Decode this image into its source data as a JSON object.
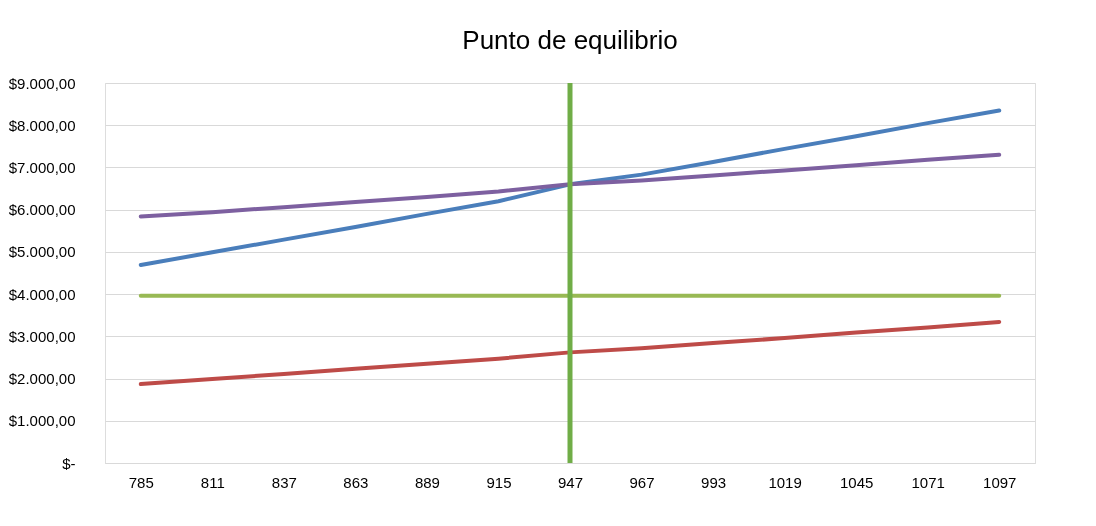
{
  "chart_data": {
    "type": "line",
    "title": "Punto de equilibrio",
    "categories": [
      "785",
      "811",
      "837",
      "863",
      "889",
      "915",
      "947",
      "967",
      "993",
      "1019",
      "1045",
      "1071",
      "1097"
    ],
    "series": [
      {
        "color": "#4a7ebb",
        "values": [
          4690,
          4990,
          5290,
          5590,
          5900,
          6200,
          6600,
          6830,
          7130,
          7440,
          7740,
          8050,
          8350
        ]
      },
      {
        "color": "#be4b48",
        "values": [
          1870,
          1990,
          2110,
          2230,
          2350,
          2470,
          2620,
          2720,
          2840,
          2960,
          3090,
          3210,
          3340
        ]
      },
      {
        "color": "#98b954",
        "values": [
          3960,
          3960,
          3960,
          3960,
          3960,
          3960,
          3960,
          3960,
          3960,
          3960,
          3960,
          3960,
          3960
        ]
      },
      {
        "color": "#7d60a0",
        "values": [
          5840,
          5940,
          6060,
          6180,
          6300,
          6430,
          6600,
          6690,
          6810,
          6930,
          7050,
          7180,
          7300
        ]
      }
    ],
    "ylim": [
      0,
      9000
    ],
    "yticks": [
      {
        "value": 0,
        "label": "$-"
      },
      {
        "value": 1000,
        "label": "$1.000,00"
      },
      {
        "value": 2000,
        "label": "$2.000,00"
      },
      {
        "value": 3000,
        "label": "$3.000,00"
      },
      {
        "value": 4000,
        "label": "$4.000,00"
      },
      {
        "value": 5000,
        "label": "$5.000,00"
      },
      {
        "value": 6000,
        "label": "$6.000,00"
      },
      {
        "value": 7000,
        "label": "$7.000,00"
      },
      {
        "value": 8000,
        "label": "$8.000,00"
      },
      {
        "value": 9000,
        "label": "$9.000,00"
      }
    ],
    "ref_lines": [
      {
        "axis": "x",
        "value": "947",
        "color": "#70ad47"
      }
    ],
    "grid": "y",
    "marker": "none",
    "line_style": "solid"
  }
}
